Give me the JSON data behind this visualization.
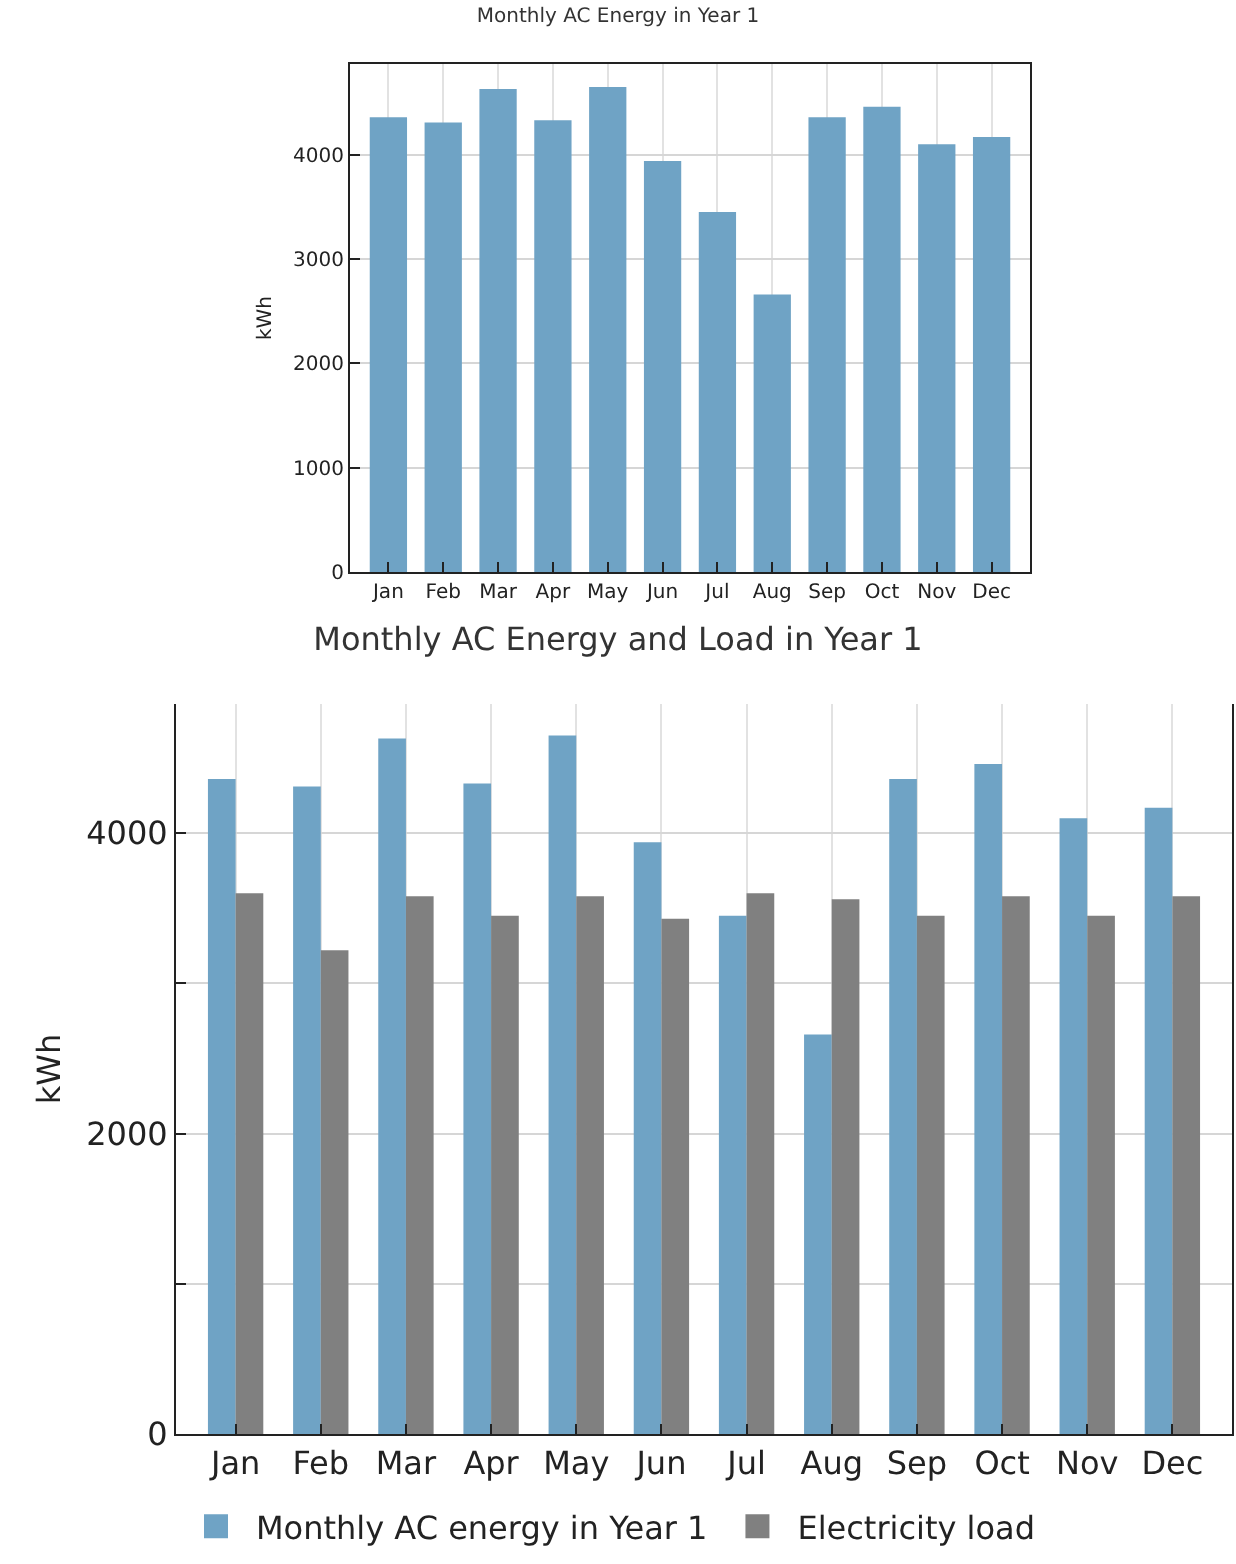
{
  "chart_data": [
    {
      "type": "bar",
      "title": "Monthly AC Energy in Year 1",
      "ylabel": "kWh",
      "categories": [
        "Jan",
        "Feb",
        "Mar",
        "Apr",
        "May",
        "Jun",
        "Jul",
        "Aug",
        "Sep",
        "Oct",
        "Nov",
        "Dec"
      ],
      "series": [
        {
          "color": "#6fa3c5",
          "values": [
            4360,
            4310,
            4630,
            4330,
            4650,
            3940,
            3450,
            2660,
            4360,
            4460,
            4100,
            4170
          ]
        }
      ],
      "ylim": [
        0,
        4870
      ],
      "yticks": [
        0,
        1000,
        2000,
        3000,
        4000
      ],
      "grid": true,
      "legend": false
    },
    {
      "type": "bar",
      "title": "Monthly AC Energy and Load in Year 1",
      "ylabel": "kWh",
      "categories": [
        "Jan",
        "Feb",
        "Mar",
        "Apr",
        "May",
        "Jun",
        "Jul",
        "Aug",
        "Sep",
        "Oct",
        "Nov",
        "Dec"
      ],
      "series": [
        {
          "name": "Monthly AC energy in Year 1",
          "color": "#6fa3c5",
          "values": [
            4360,
            4310,
            4630,
            4330,
            4650,
            3940,
            3450,
            2660,
            4360,
            4460,
            4100,
            4170
          ]
        },
        {
          "name": "Electricity load",
          "color": "#808080",
          "values": [
            3600,
            3220,
            3580,
            3450,
            3580,
            3430,
            3600,
            3560,
            3450,
            3580,
            3450,
            3580
          ]
        }
      ],
      "ylim": [
        0,
        4860
      ],
      "yticks": [
        0,
        {
          "value": 1000,
          "label": null
        },
        2000,
        {
          "value": 3000,
          "label": null
        },
        4000
      ],
      "grid": true,
      "legend": "bottom left"
    }
  ]
}
